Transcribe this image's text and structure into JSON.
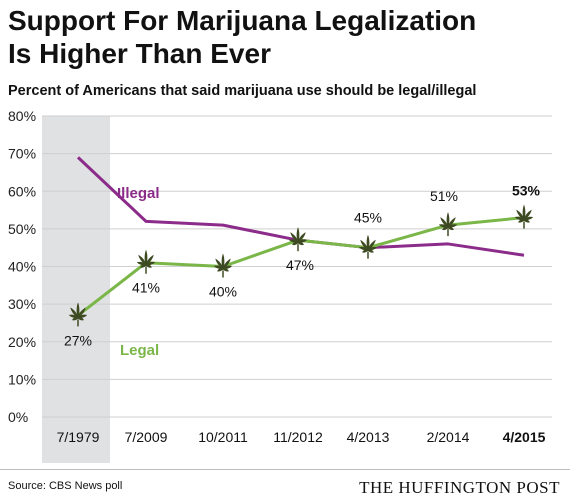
{
  "header": {
    "title_line1": "Support For Marijuana Legalization",
    "title_line2": "Is Higher Than Ever",
    "subtitle": "Percent of Americans that said marijuana use should be legal/illegal"
  },
  "footer": {
    "source": "Source: CBS News poll",
    "brand": "THE HUFFINGTON POST"
  },
  "colors": {
    "legal": "#7ab648",
    "illegal": "#8c2c8a",
    "highlight_band": "#e0e1e3",
    "grid": "#cfcfcf",
    "leaf": "#3d4a22"
  },
  "chart_data": {
    "type": "line",
    "categories": [
      "7/1979",
      "7/2009",
      "10/2011",
      "11/2012",
      "4/2013",
      "2/2014",
      "4/2015"
    ],
    "bold_category": "4/2015",
    "ylim": [
      0,
      80
    ],
    "yticks": [
      0,
      10,
      20,
      30,
      40,
      50,
      60,
      70,
      80
    ],
    "ytick_labels": [
      "0%",
      "10%",
      "20%",
      "30%",
      "40%",
      "50%",
      "60%",
      "70%",
      "80%"
    ],
    "grid": true,
    "highlighted_category": "7/1979",
    "series": [
      {
        "name": "Legal",
        "values": [
          27,
          41,
          40,
          47,
          45,
          51,
          53
        ],
        "labels": [
          "27%",
          "41%",
          "40%",
          "47%",
          "45%",
          "51%",
          "53%"
        ],
        "marker": "leaf-icon"
      },
      {
        "name": "Illegal",
        "values": [
          69,
          52,
          51,
          47,
          45,
          46,
          43
        ]
      }
    ]
  }
}
